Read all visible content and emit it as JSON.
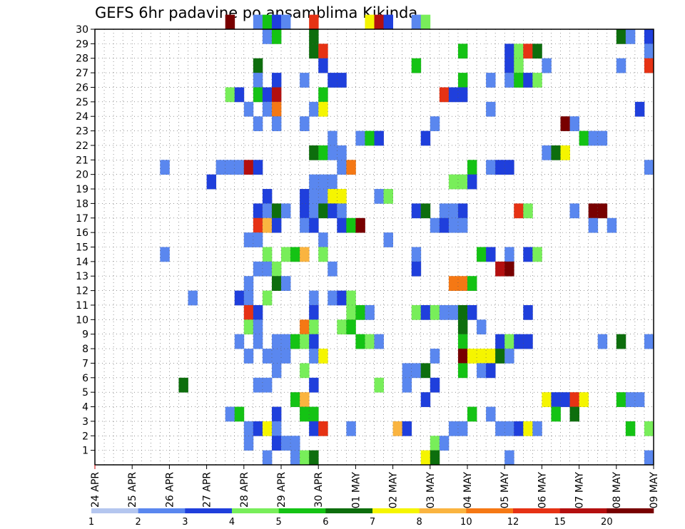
{
  "chart_data": {
    "type": "heatmap",
    "title": "GEFS 6hr padavine po ansamblima Kikinda",
    "xlabel": "",
    "ylabel": "",
    "x_tick_labels": [
      "24 APR",
      "25 APR",
      "26 APR",
      "27 APR",
      "28 APR",
      "29 APR",
      "30 APR",
      "01 MAY",
      "02 MAY",
      "03 MAY",
      "04 MAY",
      "05 MAY",
      "06 MAY",
      "07 MAY",
      "08 MAY",
      "09 MAY"
    ],
    "y_tick_labels": [
      "1",
      "2",
      "3",
      "4",
      "5",
      "6",
      "7",
      "8",
      "9",
      "10",
      "11",
      "12",
      "13",
      "14",
      "15",
      "16",
      "17",
      "18",
      "19",
      "20",
      "21",
      "22",
      "23",
      "24",
      "25",
      "26",
      "27",
      "28",
      "29",
      "30"
    ],
    "xlim": [
      0,
      60
    ],
    "ylim": [
      0,
      30
    ],
    "x_unit": "6-hour steps from 24 APR 00z",
    "y_unit": "ensemble member",
    "grid": true,
    "colorbar": {
      "levels": [
        "1",
        "2",
        "3",
        "4",
        "5",
        "6",
        "7",
        "8",
        "10",
        "12",
        "15",
        "20"
      ],
      "colors": [
        "#b4c6ef",
        "#5a87ef",
        "#1f3fdc",
        "#78ee5a",
        "#14c314",
        "#0d6e0d",
        "#f5f500",
        "#fab440",
        "#f57814",
        "#e63214",
        "#b40f0f",
        "#780000"
      ]
    },
    "cells": [
      [
        14,
        30,
        11
      ],
      [
        17,
        30,
        1
      ],
      [
        18,
        30,
        4
      ],
      [
        19,
        30,
        2
      ],
      [
        20,
        30,
        1
      ],
      [
        23,
        30,
        9
      ],
      [
        29,
        30,
        6
      ],
      [
        30,
        30,
        10
      ],
      [
        31,
        30,
        2
      ],
      [
        34,
        30,
        1
      ],
      [
        35,
        30,
        3
      ],
      [
        18,
        29,
        1
      ],
      [
        19,
        29,
        4
      ],
      [
        23,
        29,
        5
      ],
      [
        56,
        29,
        5
      ],
      [
        57,
        29,
        1
      ],
      [
        59,
        29,
        2
      ],
      [
        23,
        28,
        5
      ],
      [
        24,
        28,
        9
      ],
      [
        39,
        28,
        4
      ],
      [
        44,
        28,
        2
      ],
      [
        45,
        28,
        3
      ],
      [
        46,
        28,
        9
      ],
      [
        47,
        28,
        5
      ],
      [
        59,
        28,
        1
      ],
      [
        17,
        27,
        5
      ],
      [
        24,
        27,
        2
      ],
      [
        34,
        27,
        4
      ],
      [
        44,
        27,
        2
      ],
      [
        45,
        27,
        3
      ],
      [
        48,
        27,
        1
      ],
      [
        56,
        27,
        1
      ],
      [
        59,
        27,
        9
      ],
      [
        17,
        26,
        1
      ],
      [
        19,
        26,
        2
      ],
      [
        22,
        26,
        1
      ],
      [
        25,
        26,
        2
      ],
      [
        26,
        26,
        2
      ],
      [
        39,
        26,
        4
      ],
      [
        42,
        26,
        1
      ],
      [
        44,
        26,
        1
      ],
      [
        45,
        26,
        4
      ],
      [
        46,
        26,
        2
      ],
      [
        47,
        26,
        3
      ],
      [
        14,
        25,
        3
      ],
      [
        15,
        25,
        2
      ],
      [
        17,
        25,
        4
      ],
      [
        18,
        25,
        2
      ],
      [
        19,
        25,
        10
      ],
      [
        24,
        25,
        4
      ],
      [
        37,
        25,
        9
      ],
      [
        38,
        25,
        2
      ],
      [
        39,
        25,
        2
      ],
      [
        16,
        24,
        1
      ],
      [
        18,
        24,
        1
      ],
      [
        19,
        24,
        8
      ],
      [
        23,
        24,
        1
      ],
      [
        24,
        24,
        6
      ],
      [
        42,
        24,
        1
      ],
      [
        58,
        24,
        2
      ],
      [
        17,
        23,
        1
      ],
      [
        19,
        23,
        1
      ],
      [
        22,
        23,
        1
      ],
      [
        36,
        23,
        1
      ],
      [
        50,
        23,
        11
      ],
      [
        51,
        23,
        1
      ],
      [
        25,
        22,
        1
      ],
      [
        28,
        22,
        1
      ],
      [
        29,
        22,
        4
      ],
      [
        30,
        22,
        2
      ],
      [
        35,
        22,
        2
      ],
      [
        52,
        22,
        4
      ],
      [
        53,
        22,
        1
      ],
      [
        54,
        22,
        1
      ],
      [
        23,
        21,
        5
      ],
      [
        24,
        21,
        4
      ],
      [
        25,
        21,
        1
      ],
      [
        26,
        21,
        1
      ],
      [
        48,
        21,
        1
      ],
      [
        49,
        21,
        5
      ],
      [
        50,
        21,
        6
      ],
      [
        7,
        20,
        1
      ],
      [
        13,
        20,
        1
      ],
      [
        14,
        20,
        1
      ],
      [
        15,
        20,
        1
      ],
      [
        16,
        20,
        10
      ],
      [
        17,
        20,
        2
      ],
      [
        26,
        20,
        1
      ],
      [
        27,
        20,
        8
      ],
      [
        40,
        20,
        4
      ],
      [
        42,
        20,
        1
      ],
      [
        43,
        20,
        2
      ],
      [
        44,
        20,
        2
      ],
      [
        59,
        20,
        1
      ],
      [
        12,
        19,
        2
      ],
      [
        23,
        19,
        1
      ],
      [
        24,
        19,
        1
      ],
      [
        25,
        19,
        1
      ],
      [
        38,
        19,
        3
      ],
      [
        39,
        19,
        3
      ],
      [
        40,
        19,
        2
      ],
      [
        18,
        18,
        2
      ],
      [
        22,
        18,
        2
      ],
      [
        23,
        18,
        1
      ],
      [
        24,
        18,
        1
      ],
      [
        25,
        18,
        6
      ],
      [
        26,
        18,
        6
      ],
      [
        30,
        18,
        1
      ],
      [
        31,
        18,
        3
      ],
      [
        17,
        17,
        2
      ],
      [
        18,
        17,
        1
      ],
      [
        19,
        17,
        5
      ],
      [
        20,
        17,
        1
      ],
      [
        22,
        17,
        2
      ],
      [
        23,
        17,
        1
      ],
      [
        24,
        17,
        5
      ],
      [
        25,
        17,
        2
      ],
      [
        26,
        17,
        1
      ],
      [
        34,
        17,
        2
      ],
      [
        35,
        17,
        5
      ],
      [
        37,
        17,
        1
      ],
      [
        38,
        17,
        1
      ],
      [
        39,
        17,
        2
      ],
      [
        45,
        17,
        9
      ],
      [
        46,
        17,
        3
      ],
      [
        51,
        17,
        1
      ],
      [
        53,
        17,
        11
      ],
      [
        54,
        17,
        11
      ],
      [
        17,
        16,
        9
      ],
      [
        18,
        16,
        7
      ],
      [
        19,
        16,
        2
      ],
      [
        22,
        16,
        1
      ],
      [
        23,
        16,
        2
      ],
      [
        26,
        16,
        2
      ],
      [
        27,
        16,
        4
      ],
      [
        28,
        16,
        11
      ],
      [
        36,
        16,
        1
      ],
      [
        37,
        16,
        2
      ],
      [
        38,
        16,
        1
      ],
      [
        39,
        16,
        1
      ],
      [
        53,
        16,
        1
      ],
      [
        55,
        16,
        1
      ],
      [
        16,
        15,
        1
      ],
      [
        17,
        15,
        1
      ],
      [
        24,
        15,
        1
      ],
      [
        31,
        15,
        1
      ],
      [
        7,
        14,
        1
      ],
      [
        18,
        14,
        3
      ],
      [
        20,
        14,
        3
      ],
      [
        21,
        14,
        4
      ],
      [
        22,
        14,
        7
      ],
      [
        24,
        14,
        3
      ],
      [
        34,
        14,
        1
      ],
      [
        41,
        14,
        4
      ],
      [
        42,
        14,
        2
      ],
      [
        44,
        14,
        1
      ],
      [
        46,
        14,
        2
      ],
      [
        47,
        14,
        3
      ],
      [
        17,
        13,
        1
      ],
      [
        18,
        13,
        1
      ],
      [
        19,
        13,
        3
      ],
      [
        25,
        13,
        1
      ],
      [
        34,
        13,
        2
      ],
      [
        43,
        13,
        10
      ],
      [
        44,
        13,
        11
      ],
      [
        16,
        12,
        1
      ],
      [
        19,
        12,
        5
      ],
      [
        20,
        12,
        1
      ],
      [
        38,
        12,
        8
      ],
      [
        39,
        12,
        8
      ],
      [
        40,
        12,
        4
      ],
      [
        10,
        11,
        1
      ],
      [
        15,
        11,
        2
      ],
      [
        16,
        11,
        1
      ],
      [
        18,
        11,
        3
      ],
      [
        23,
        11,
        1
      ],
      [
        25,
        11,
        1
      ],
      [
        26,
        11,
        2
      ],
      [
        27,
        11,
        3
      ],
      [
        16,
        10,
        9
      ],
      [
        17,
        10,
        2
      ],
      [
        23,
        10,
        2
      ],
      [
        27,
        10,
        3
      ],
      [
        28,
        10,
        4
      ],
      [
        29,
        10,
        1
      ],
      [
        34,
        10,
        3
      ],
      [
        35,
        10,
        2
      ],
      [
        36,
        10,
        3
      ],
      [
        37,
        10,
        1
      ],
      [
        38,
        10,
        1
      ],
      [
        39,
        10,
        5
      ],
      [
        40,
        10,
        2
      ],
      [
        46,
        10,
        2
      ],
      [
        16,
        9,
        3
      ],
      [
        17,
        9,
        1
      ],
      [
        22,
        9,
        8
      ],
      [
        23,
        9,
        3
      ],
      [
        26,
        9,
        3
      ],
      [
        27,
        9,
        4
      ],
      [
        39,
        9,
        5
      ],
      [
        41,
        9,
        1
      ],
      [
        15,
        8,
        1
      ],
      [
        17,
        8,
        1
      ],
      [
        19,
        8,
        1
      ],
      [
        20,
        8,
        1
      ],
      [
        21,
        8,
        4
      ],
      [
        22,
        8,
        3
      ],
      [
        23,
        8,
        2
      ],
      [
        28,
        8,
        4
      ],
      [
        29,
        8,
        3
      ],
      [
        30,
        8,
        1
      ],
      [
        39,
        8,
        4
      ],
      [
        43,
        8,
        2
      ],
      [
        44,
        8,
        3
      ],
      [
        45,
        8,
        2
      ],
      [
        46,
        8,
        2
      ],
      [
        54,
        8,
        1
      ],
      [
        56,
        8,
        5
      ],
      [
        59,
        8,
        1
      ],
      [
        16,
        7,
        1
      ],
      [
        18,
        7,
        1
      ],
      [
        19,
        7,
        1
      ],
      [
        20,
        7,
        1
      ],
      [
        23,
        7,
        1
      ],
      [
        24,
        7,
        6
      ],
      [
        36,
        7,
        1
      ],
      [
        39,
        7,
        11
      ],
      [
        40,
        7,
        6
      ],
      [
        41,
        7,
        6
      ],
      [
        42,
        7,
        6
      ],
      [
        43,
        7,
        5
      ],
      [
        44,
        7,
        1
      ],
      [
        19,
        6,
        1
      ],
      [
        22,
        6,
        3
      ],
      [
        33,
        6,
        1
      ],
      [
        34,
        6,
        1
      ],
      [
        35,
        6,
        5
      ],
      [
        39,
        6,
        4
      ],
      [
        41,
        6,
        1
      ],
      [
        42,
        6,
        2
      ],
      [
        9,
        5,
        5
      ],
      [
        17,
        5,
        1
      ],
      [
        18,
        5,
        1
      ],
      [
        23,
        5,
        2
      ],
      [
        30,
        5,
        3
      ],
      [
        33,
        5,
        1
      ],
      [
        36,
        5,
        2
      ],
      [
        21,
        4,
        4
      ],
      [
        22,
        4,
        7
      ],
      [
        35,
        4,
        2
      ],
      [
        48,
        4,
        6
      ],
      [
        49,
        4,
        2
      ],
      [
        50,
        4,
        2
      ],
      [
        51,
        4,
        9
      ],
      [
        52,
        4,
        6
      ],
      [
        56,
        4,
        4
      ],
      [
        57,
        4,
        1
      ],
      [
        58,
        4,
        1
      ],
      [
        14,
        3,
        1
      ],
      [
        15,
        3,
        4
      ],
      [
        19,
        3,
        2
      ],
      [
        22,
        3,
        4
      ],
      [
        23,
        3,
        4
      ],
      [
        40,
        3,
        4
      ],
      [
        42,
        3,
        1
      ],
      [
        49,
        3,
        4
      ],
      [
        51,
        3,
        5
      ],
      [
        16,
        2,
        1
      ],
      [
        17,
        2,
        2
      ],
      [
        18,
        2,
        6
      ],
      [
        19,
        2,
        1
      ],
      [
        23,
        2,
        2
      ],
      [
        24,
        2,
        9
      ],
      [
        27,
        2,
        1
      ],
      [
        32,
        2,
        7
      ],
      [
        33,
        2,
        2
      ],
      [
        38,
        2,
        1
      ],
      [
        39,
        2,
        1
      ],
      [
        43,
        2,
        1
      ],
      [
        44,
        2,
        1
      ],
      [
        45,
        2,
        2
      ],
      [
        46,
        2,
        6
      ],
      [
        47,
        2,
        1
      ],
      [
        57,
        2,
        4
      ],
      [
        59,
        2,
        3
      ],
      [
        16,
        1,
        1
      ],
      [
        19,
        1,
        2
      ],
      [
        20,
        1,
        1
      ],
      [
        21,
        1,
        1
      ],
      [
        36,
        1,
        3
      ],
      [
        37,
        1,
        1
      ],
      [
        18,
        0,
        1
      ],
      [
        21,
        0,
        1
      ],
      [
        22,
        0,
        3
      ],
      [
        23,
        0,
        5
      ],
      [
        35,
        0,
        6
      ],
      [
        36,
        0,
        5
      ],
      [
        44,
        0,
        1
      ],
      [
        59,
        0,
        1
      ]
    ]
  }
}
